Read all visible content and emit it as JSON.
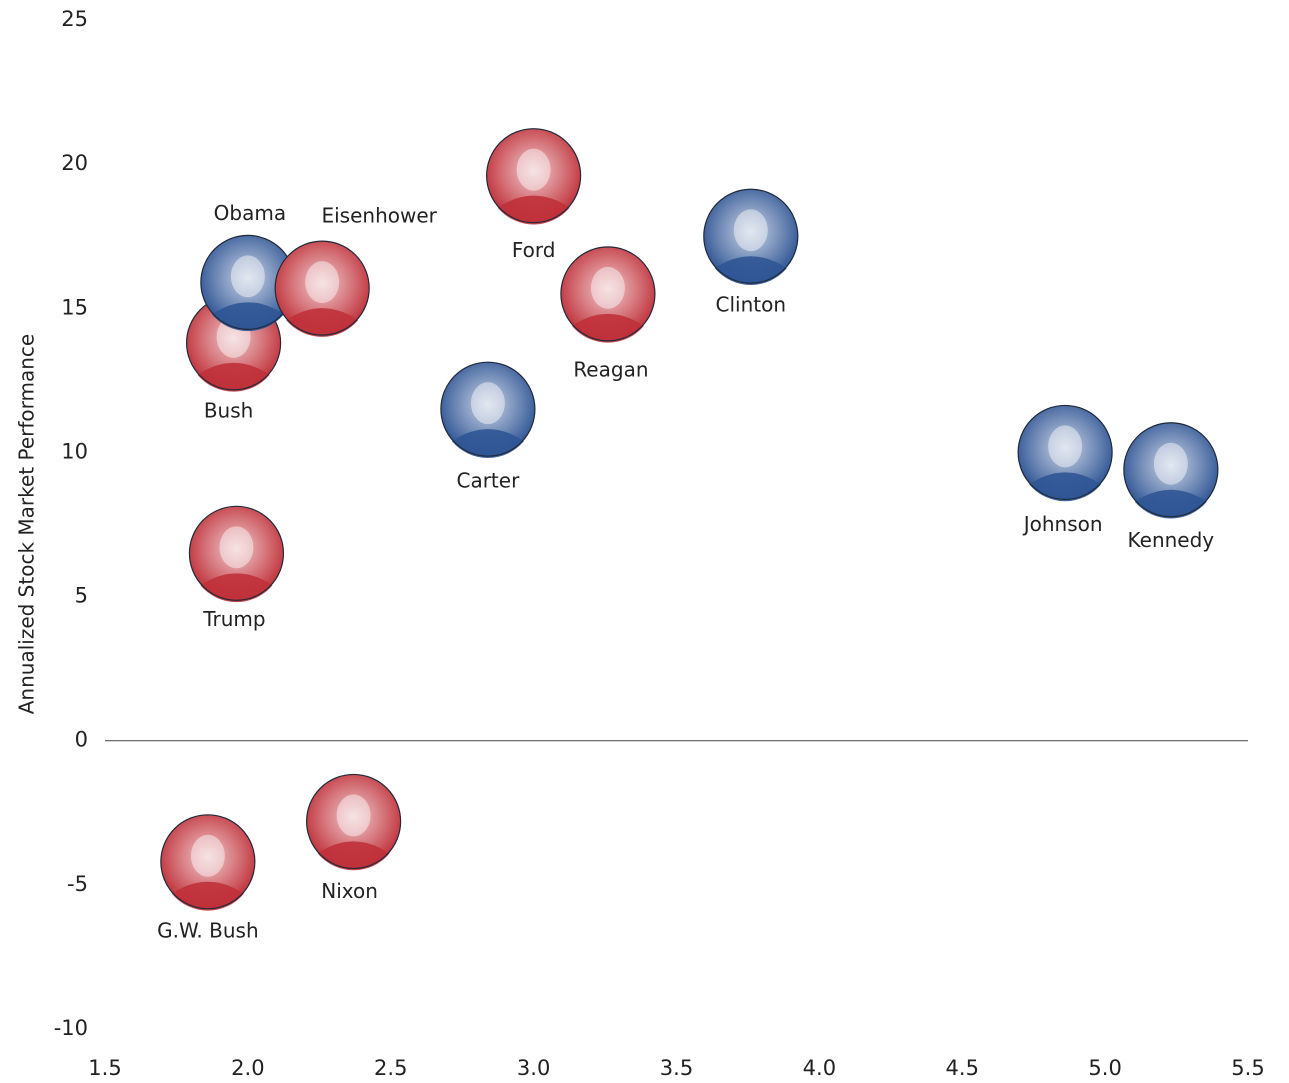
{
  "chart_data": {
    "type": "scatter",
    "y_label": "Annualized Stock Market Performance",
    "labels": [
      "Bush",
      "Obama",
      "Eisenhower",
      "Trump",
      "Ford",
      "Reagan",
      "Clinton",
      "Carter",
      "Johnson",
      "Kennedy",
      "G.W. Bush",
      "Nixon"
    ],
    "x": [
      1.95,
      2.0,
      2.26,
      1.96,
      3.0,
      3.26,
      3.76,
      2.84,
      4.86,
      5.23,
      1.86,
      2.37
    ],
    "values": [
      13.8,
      15.9,
      15.7,
      6.5,
      19.6,
      15.5,
      17.5,
      11.5,
      10.0,
      9.4,
      -4.2,
      -2.8
    ],
    "colors": [
      "#c0313a",
      "#2f5595",
      "#c0313a",
      "#c0313a",
      "#c0313a",
      "#c0313a",
      "#2f5595",
      "#2f5595",
      "#2f5595",
      "#2f5595",
      "#c0313a",
      "#c0313a"
    ],
    "xlim": [
      1.5,
      5.5
    ],
    "xticks": [
      1.5,
      {
        "value": 2,
        "label": "2.0"
      },
      2.5,
      {
        "value": 3,
        "label": "3.0"
      },
      3.5,
      {
        "value": 4,
        "label": "4.0"
      },
      4.5,
      {
        "value": 5,
        "label": "5.0"
      },
      5.5
    ],
    "ylim": [
      -10,
      25
    ],
    "yticks": [
      -10,
      -5,
      0,
      5,
      10,
      15,
      20,
      25
    ],
    "zero_line": true
  }
}
